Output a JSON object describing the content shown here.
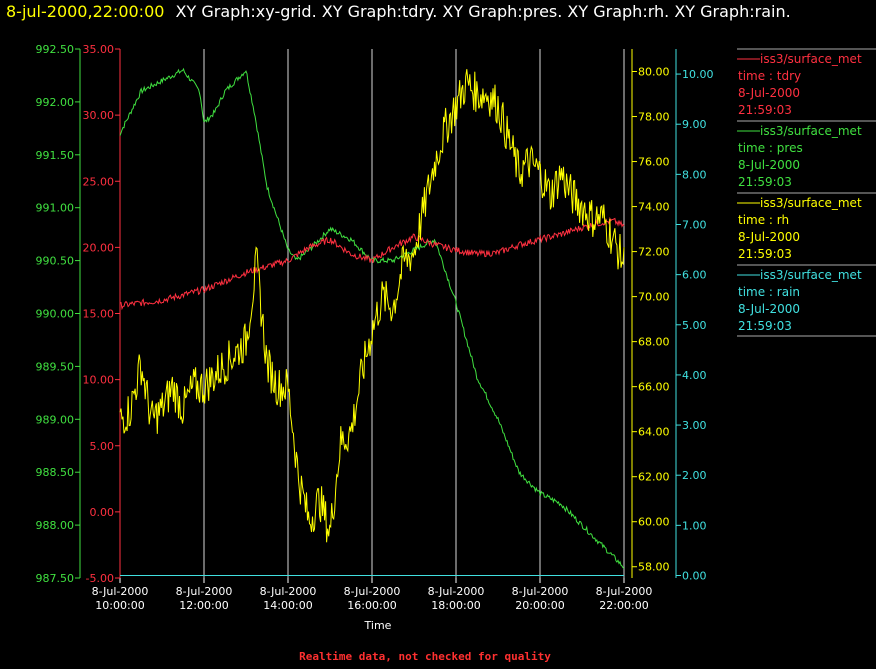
{
  "header": {
    "datetime": "8-jul-2000,22:00:00",
    "graphs": "XY Graph:xy-grid.  XY Graph:tdry.  XY Graph:pres.  XY Graph:rh.  XY Graph:rain."
  },
  "footer_note": "Realtime data, not checked for quality",
  "colors": {
    "tdry": "#ff3040",
    "pres": "#40e040",
    "rh": "#ffff00",
    "rain": "#40e0e0",
    "grid": "#ffffff"
  },
  "chart_data": {
    "type": "line",
    "xlabel": "Time",
    "x_ticks": [
      [
        "8-Jul-2000",
        "10:00:00"
      ],
      [
        "8-Jul-2000",
        "12:00:00"
      ],
      [
        "8-Jul-2000",
        "14:00:00"
      ],
      [
        "8-Jul-2000",
        "16:00:00"
      ],
      [
        "8-Jul-2000",
        "18:00:00"
      ],
      [
        "8-Jul-2000",
        "20:00:00"
      ],
      [
        "8-Jul-2000",
        "22:00:00"
      ]
    ],
    "x_range_hours": [
      10,
      22
    ],
    "axes": {
      "pres": {
        "min": 987.5,
        "max": 992.5,
        "ticks": [
          "987.50",
          "988.00",
          "988.50",
          "989.00",
          "989.50",
          "990.00",
          "990.50",
          "991.00",
          "991.50",
          "992.00",
          "992.50"
        ]
      },
      "tdry": {
        "min": -5,
        "max": 35,
        "ticks": [
          "-5.00",
          "0.00",
          "5.00",
          "10.00",
          "15.00",
          "20.00",
          "25.00",
          "30.00",
          "35.00"
        ]
      },
      "rh": {
        "min": 57.5,
        "max": 81,
        "ticks": [
          "58.00",
          "60.00",
          "62.00",
          "64.00",
          "66.00",
          "68.00",
          "70.00",
          "72.00",
          "74.00",
          "76.00",
          "78.00",
          "80.00"
        ]
      },
      "rain": {
        "min": -0.05,
        "max": 10.5,
        "ticks": [
          "0.00",
          "1.00",
          "2.00",
          "3.00",
          "4.00",
          "5.00",
          "6.00",
          "7.00",
          "8.00",
          "9.00",
          "10.00"
        ]
      }
    },
    "legend": [
      {
        "key": "tdry",
        "name": "iss3/surface_met",
        "field": "time : tdry",
        "date": "8-Jul-2000",
        "time": "21:59:03"
      },
      {
        "key": "pres",
        "name": "iss3/surface_met",
        "field": "time : pres",
        "date": "8-Jul-2000",
        "time": "21:59:03"
      },
      {
        "key": "rh",
        "name": "iss3/surface_met",
        "field": "time : rh",
        "date": "8-Jul-2000",
        "time": "21:59:03"
      },
      {
        "key": "rain",
        "name": "iss3/surface_met",
        "field": "time : rain",
        "date": "8-Jul-2000",
        "time": "21:59:03"
      }
    ],
    "series": {
      "tdry": {
        "x": [
          10.0,
          11.0,
          12.0,
          13.0,
          14.0,
          14.5,
          15.0,
          15.5,
          16.0,
          16.5,
          17.0,
          17.5,
          18.0,
          18.5,
          19.0,
          19.5,
          20.0,
          20.5,
          21.0,
          21.5,
          21.75,
          22.0
        ],
        "values": [
          15.6,
          16.0,
          16.8,
          18.1,
          19.0,
          20.0,
          20.6,
          19.5,
          19.0,
          20.0,
          20.8,
          20.2,
          19.8,
          19.5,
          19.6,
          20.2,
          20.6,
          21.0,
          21.5,
          21.9,
          22.0,
          21.6
        ]
      },
      "pres": {
        "x": [
          10.0,
          10.25,
          10.5,
          11.0,
          11.5,
          11.9,
          12.0,
          12.25,
          12.5,
          13.0,
          13.2,
          13.5,
          14.0,
          14.2,
          14.5,
          15.0,
          15.5,
          16.0,
          16.5,
          17.0,
          17.5,
          18.0,
          18.5,
          19.0,
          19.5,
          20.0,
          20.5,
          21.0,
          21.5,
          22.0
        ],
        "values": [
          991.7,
          991.9,
          992.1,
          992.2,
          992.3,
          992.1,
          991.8,
          991.9,
          992.1,
          992.3,
          991.9,
          991.2,
          990.6,
          990.5,
          990.6,
          990.8,
          990.7,
          990.5,
          990.5,
          990.6,
          990.7,
          990.1,
          989.4,
          989.0,
          988.5,
          988.3,
          988.2,
          988.0,
          987.8,
          987.6
        ]
      },
      "rh": {
        "x": [
          10.0,
          10.25,
          10.5,
          10.75,
          11.0,
          11.25,
          11.5,
          11.75,
          12.0,
          12.5,
          13.0,
          13.25,
          13.5,
          13.75,
          14.0,
          14.25,
          14.5,
          14.75,
          15.0,
          15.25,
          15.5,
          15.75,
          16.0,
          16.25,
          16.5,
          16.75,
          17.0,
          17.25,
          17.5,
          17.75,
          18.0,
          18.25,
          18.5,
          18.75,
          19.0,
          19.25,
          19.5,
          19.75,
          20.0,
          20.25,
          20.5,
          20.75,
          21.0,
          21.25,
          21.5,
          21.75,
          22.0
        ],
        "values": [
          64.5,
          65.0,
          67.0,
          64.5,
          65.0,
          66.0,
          65.0,
          66.0,
          66.0,
          67.0,
          68.0,
          71.5,
          67.0,
          66.0,
          66.0,
          62.0,
          60.0,
          61.0,
          59.5,
          63.5,
          64.0,
          66.5,
          68.5,
          70.0,
          69.5,
          71.5,
          72.0,
          74.0,
          76.0,
          77.5,
          78.5,
          79.5,
          79.0,
          79.0,
          78.5,
          77.0,
          75.5,
          76.0,
          75.5,
          74.5,
          75.5,
          74.5,
          74.0,
          73.5,
          73.5,
          72.5,
          71.5
        ]
      },
      "rain": {
        "x": [
          10.0,
          22.0
        ],
        "values": [
          0.0,
          0.0
        ]
      }
    }
  }
}
